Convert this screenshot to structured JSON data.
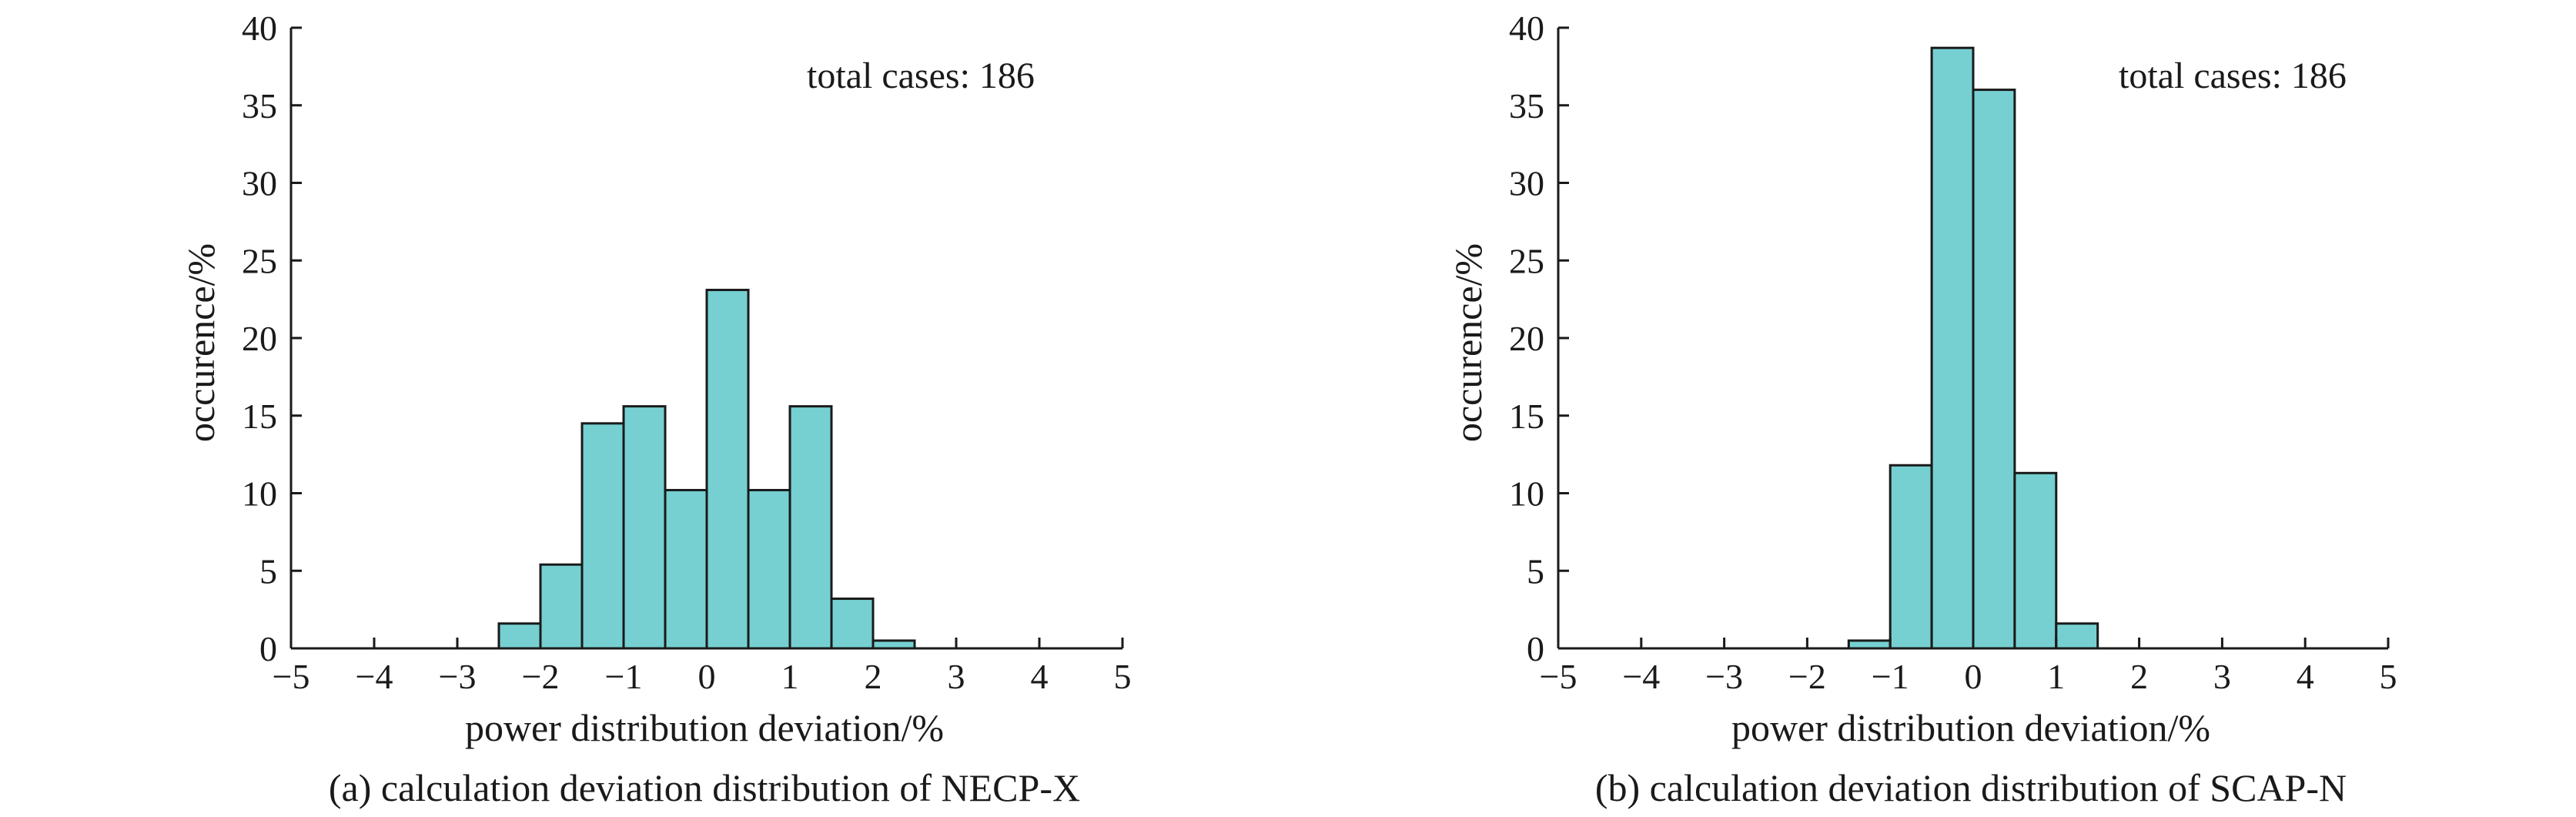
{
  "colors": {
    "bar_fill": "#76d0d2",
    "bar_stroke": "#1a1a1a",
    "axis": "#1a1a1a"
  },
  "chart_data": [
    {
      "type": "bar",
      "caption": "(a) calculation deviation distribution of NECP-X",
      "xlabel": "power distribution deviation/%",
      "ylabel": "occurence/%",
      "annotation": "total cases: 186",
      "xlim": [
        -5,
        5
      ],
      "ylim": [
        0,
        40
      ],
      "xticks": [
        -5,
        -4,
        -3,
        -2,
        -1,
        0,
        1,
        2,
        3,
        4,
        5
      ],
      "yticks": [
        0,
        5,
        10,
        15,
        20,
        25,
        30,
        35,
        40
      ],
      "xtick_labels": [
        "−5",
        "−4",
        "−3",
        "−2",
        "−1",
        "0",
        "1",
        "2",
        "3",
        "4",
        "5"
      ],
      "ytick_labels": [
        "0",
        "5",
        "10",
        "15",
        "20",
        "25",
        "30",
        "35",
        "40"
      ],
      "bin_width": 0.5,
      "bin_starts": [
        -2.5,
        -2.0,
        -1.5,
        -1.0,
        -0.5,
        0.0,
        0.5,
        1.0,
        1.5,
        2.0
      ],
      "values": [
        1.6,
        5.4,
        14.5,
        15.6,
        10.2,
        23.1,
        10.2,
        15.6,
        3.2,
        0.5
      ],
      "grid": false
    },
    {
      "type": "bar",
      "caption": "(b) calculation deviation distribution of SCAP-N",
      "xlabel": "power distribution deviation/%",
      "ylabel": "occurence/%",
      "annotation": "total cases: 186",
      "xlim": [
        -5,
        5
      ],
      "ylim": [
        0,
        40
      ],
      "xticks": [
        -5,
        -4,
        -3,
        -2,
        -1,
        0,
        1,
        2,
        3,
        4,
        5
      ],
      "yticks": [
        0,
        5,
        10,
        15,
        20,
        25,
        30,
        35,
        40
      ],
      "xtick_labels": [
        "−5",
        "−4",
        "−3",
        "−2",
        "−1",
        "0",
        "1",
        "2",
        "3",
        "4",
        "5"
      ],
      "ytick_labels": [
        "0",
        "5",
        "10",
        "15",
        "20",
        "25",
        "30",
        "35",
        "40"
      ],
      "bin_width": 0.5,
      "bin_starts": [
        -1.5,
        -1.0,
        -0.5,
        0.0,
        0.5,
        1.0
      ],
      "values": [
        0.5,
        11.8,
        38.7,
        36.0,
        11.3,
        1.6
      ],
      "grid": false
    }
  ]
}
